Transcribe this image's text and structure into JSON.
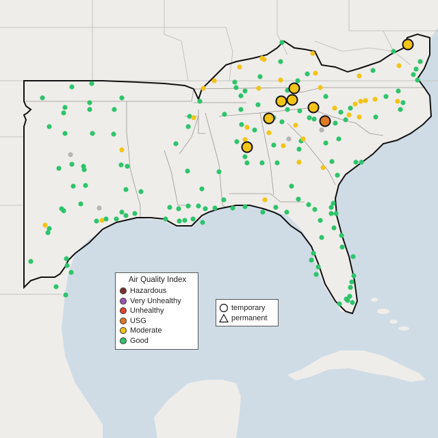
{
  "legend": {
    "title": "Air Quality Index",
    "categories": [
      {
        "label": "Hazardous",
        "color": "#7e2f2f"
      },
      {
        "label": "Very Unhealthy",
        "color": "#9b55b5"
      },
      {
        "label": "Unhealthy",
        "color": "#e2432b"
      },
      {
        "label": "USG",
        "color": "#e07a24"
      },
      {
        "label": "Moderate",
        "color": "#f2c417"
      },
      {
        "label": "Good",
        "color": "#2ec46c"
      }
    ]
  },
  "monitor_types": {
    "items": [
      {
        "label": "temporary",
        "shape": "circle-icon"
      },
      {
        "label": "permanent",
        "shape": "triangle-icon"
      }
    ]
  },
  "colors": {
    "land": "#efedea",
    "water": "#cfdce6",
    "neighbor_border": "#c6c2bd",
    "region_border": "#111111",
    "no_data": "#b5b5b5"
  }
}
